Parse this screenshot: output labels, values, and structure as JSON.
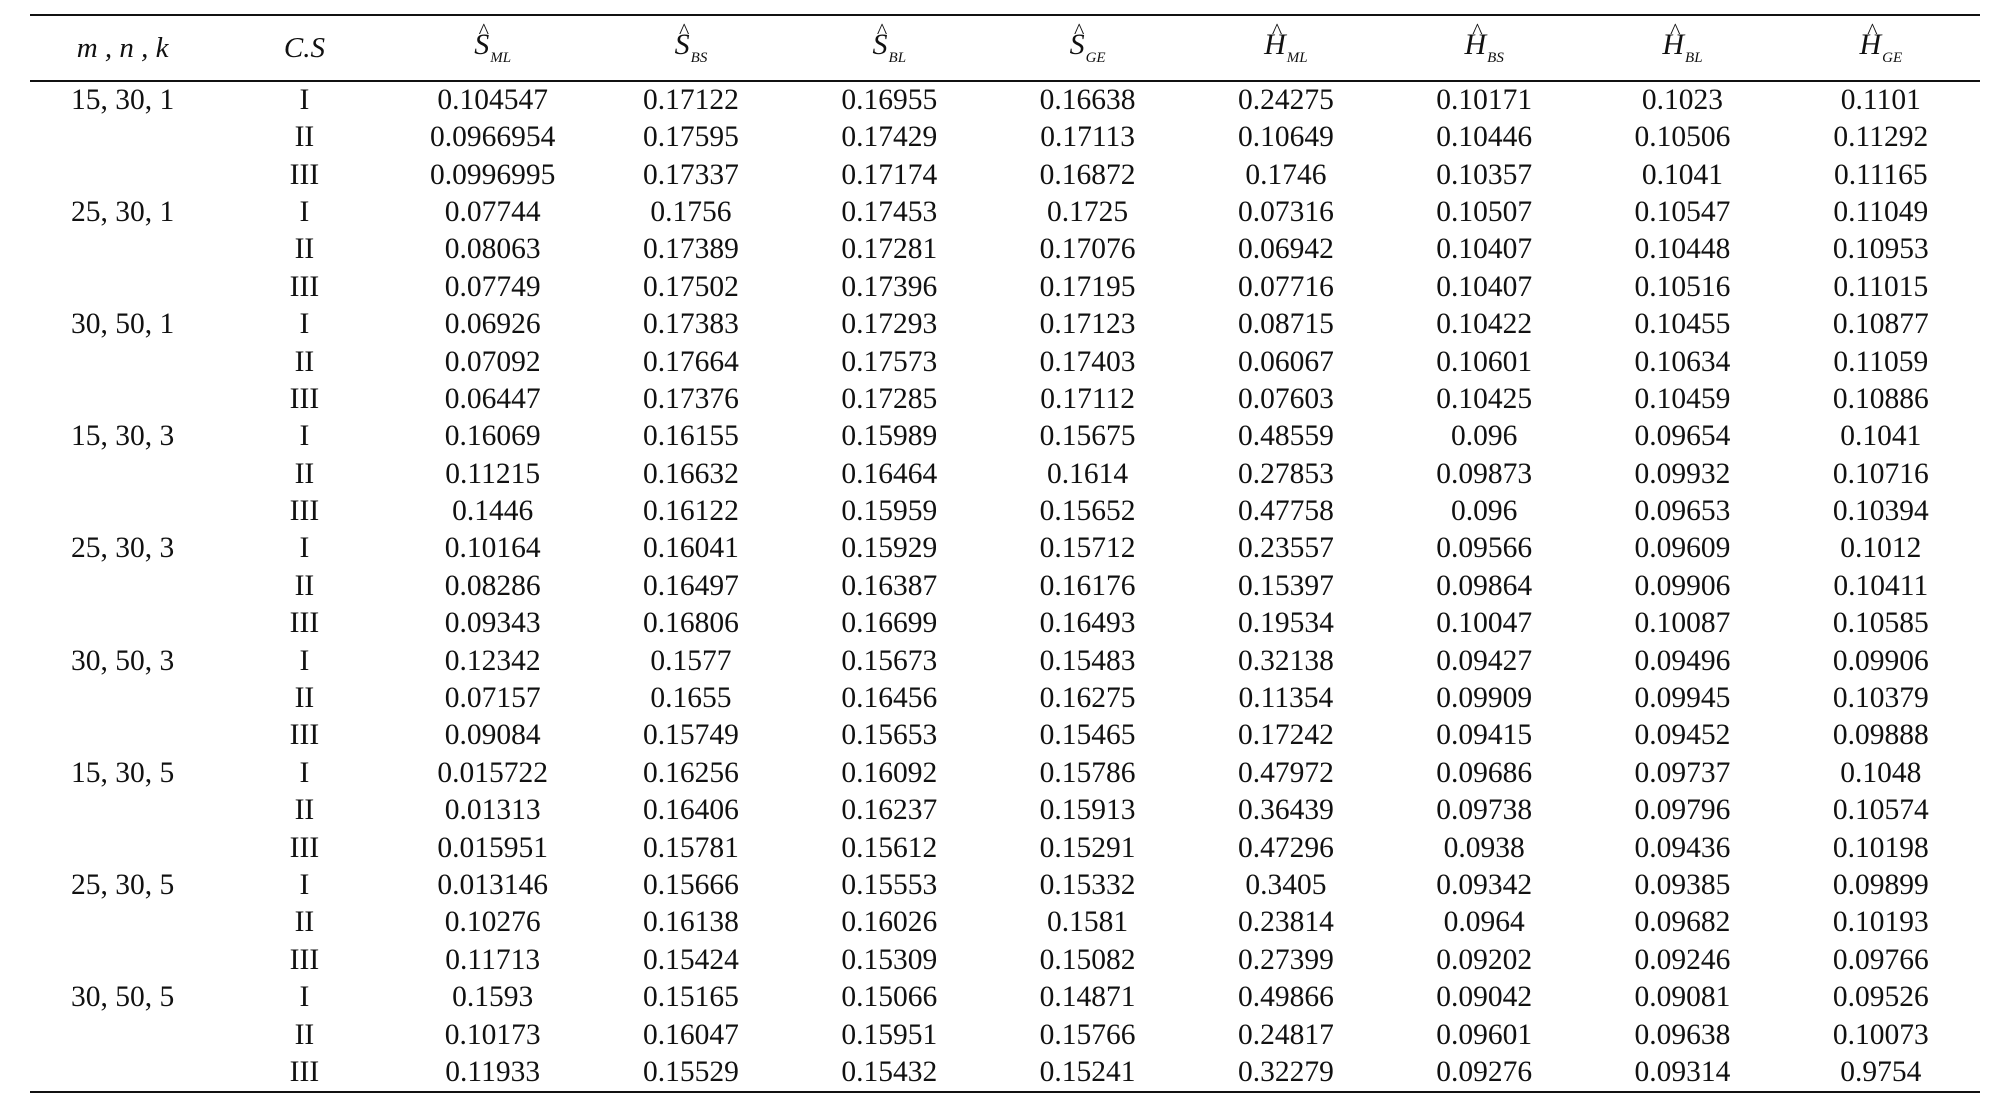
{
  "header": {
    "col_group": "m ,  n ,  k",
    "col_cs": "C.S",
    "estimators": [
      {
        "symbol": "S",
        "sub": "ML"
      },
      {
        "symbol": "S",
        "sub": "BS"
      },
      {
        "symbol": "S",
        "sub": "BL"
      },
      {
        "symbol": "S",
        "sub": "GE"
      },
      {
        "symbol": "H",
        "sub": "ML"
      },
      {
        "symbol": "H",
        "sub": "BS"
      },
      {
        "symbol": "H",
        "sub": "BL"
      },
      {
        "symbol": "H",
        "sub": "GE"
      }
    ]
  },
  "rows": [
    {
      "group": "15, 30, 1",
      "cs": "I",
      "values": [
        "0.104547",
        "0.17122",
        "0.16955",
        "0.16638",
        "0.24275",
        "0.10171",
        "0.1023",
        "0.1101"
      ]
    },
    {
      "group": "",
      "cs": "II",
      "values": [
        "0.0966954",
        "0.17595",
        "0.17429",
        "0.17113",
        "0.10649",
        "0.10446",
        "0.10506",
        "0.11292"
      ]
    },
    {
      "group": "",
      "cs": "III",
      "values": [
        "0.0996995",
        "0.17337",
        "0.17174",
        "0.16872",
        "0.1746",
        "0.10357",
        "0.1041",
        "0.11165"
      ]
    },
    {
      "group": "25, 30, 1",
      "cs": "I",
      "values": [
        "0.07744",
        "0.1756",
        "0.17453",
        "0.1725",
        "0.07316",
        "0.10507",
        "0.10547",
        "0.11049"
      ]
    },
    {
      "group": "",
      "cs": "II",
      "values": [
        "0.08063",
        "0.17389",
        "0.17281",
        "0.17076",
        "0.06942",
        "0.10407",
        "0.10448",
        "0.10953"
      ]
    },
    {
      "group": "",
      "cs": "III",
      "values": [
        "0.07749",
        "0.17502",
        "0.17396",
        "0.17195",
        "0.07716",
        "0.10407",
        "0.10516",
        "0.11015"
      ]
    },
    {
      "group": "30, 50, 1",
      "cs": "I",
      "values": [
        "0.06926",
        "0.17383",
        "0.17293",
        "0.17123",
        "0.08715",
        "0.10422",
        "0.10455",
        "0.10877"
      ]
    },
    {
      "group": "",
      "cs": "II",
      "values": [
        "0.07092",
        "0.17664",
        "0.17573",
        "0.17403",
        "0.06067",
        "0.10601",
        "0.10634",
        "0.11059"
      ]
    },
    {
      "group": "",
      "cs": "III",
      "values": [
        "0.06447",
        "0.17376",
        "0.17285",
        "0.17112",
        "0.07603",
        "0.10425",
        "0.10459",
        "0.10886"
      ]
    },
    {
      "group": "15, 30, 3",
      "cs": "I",
      "values": [
        "0.16069",
        "0.16155",
        "0.15989",
        "0.15675",
        "0.48559",
        "0.096",
        "0.09654",
        "0.1041"
      ]
    },
    {
      "group": "",
      "cs": "II",
      "values": [
        "0.11215",
        "0.16632",
        "0.16464",
        "0.1614",
        "0.27853",
        "0.09873",
        "0.09932",
        "0.10716"
      ]
    },
    {
      "group": "",
      "cs": "III",
      "values": [
        "0.1446",
        "0.16122",
        "0.15959",
        "0.15652",
        "0.47758",
        "0.096",
        "0.09653",
        "0.10394"
      ]
    },
    {
      "group": "25, 30, 3",
      "cs": "I",
      "values": [
        "0.10164",
        "0.16041",
        "0.15929",
        "0.15712",
        "0.23557",
        "0.09566",
        "0.09609",
        "0.1012"
      ]
    },
    {
      "group": "",
      "cs": "II",
      "values": [
        "0.08286",
        "0.16497",
        "0.16387",
        "0.16176",
        "0.15397",
        "0.09864",
        "0.09906",
        "0.10411"
      ]
    },
    {
      "group": "",
      "cs": "III",
      "values": [
        "0.09343",
        "0.16806",
        "0.16699",
        "0.16493",
        "0.19534",
        "0.10047",
        "0.10087",
        "0.10585"
      ]
    },
    {
      "group": "30, 50, 3",
      "cs": "I",
      "values": [
        "0.12342",
        "0.1577",
        "0.15673",
        "0.15483",
        "0.32138",
        "0.09427",
        "0.09496",
        "0.09906"
      ]
    },
    {
      "group": "",
      "cs": "II",
      "values": [
        "0.07157",
        "0.1655",
        "0.16456",
        "0.16275",
        "0.11354",
        "0.09909",
        "0.09945",
        "0.10379"
      ]
    },
    {
      "group": "",
      "cs": "III",
      "values": [
        "0.09084",
        "0.15749",
        "0.15653",
        "0.15465",
        "0.17242",
        "0.09415",
        "0.09452",
        "0.09888"
      ]
    },
    {
      "group": "15, 30, 5",
      "cs": "I",
      "values": [
        "0.015722",
        "0.16256",
        "0.16092",
        "0.15786",
        "0.47972",
        "0.09686",
        "0.09737",
        "0.1048"
      ]
    },
    {
      "group": "",
      "cs": "II",
      "values": [
        "0.01313",
        "0.16406",
        "0.16237",
        "0.15913",
        "0.36439",
        "0.09738",
        "0.09796",
        "0.10574"
      ]
    },
    {
      "group": "",
      "cs": "III",
      "values": [
        "0.015951",
        "0.15781",
        "0.15612",
        "0.15291",
        "0.47296",
        "0.0938",
        "0.09436",
        "0.10198"
      ]
    },
    {
      "group": "25, 30, 5",
      "cs": "I",
      "values": [
        "0.013146",
        "0.15666",
        "0.15553",
        "0.15332",
        "0.3405",
        "0.09342",
        "0.09385",
        "0.09899"
      ]
    },
    {
      "group": "",
      "cs": "II",
      "values": [
        "0.10276",
        "0.16138",
        "0.16026",
        "0.1581",
        "0.23814",
        "0.0964",
        "0.09682",
        "0.10193"
      ]
    },
    {
      "group": "",
      "cs": "III",
      "values": [
        "0.11713",
        "0.15424",
        "0.15309",
        "0.15082",
        "0.27399",
        "0.09202",
        "0.09246",
        "0.09766"
      ]
    },
    {
      "group": "30, 50, 5",
      "cs": "I",
      "values": [
        "0.1593",
        "0.15165",
        "0.15066",
        "0.14871",
        "0.49866",
        "0.09042",
        "0.09081",
        "0.09526"
      ]
    },
    {
      "group": "",
      "cs": "II",
      "values": [
        "0.10173",
        "0.16047",
        "0.15951",
        "0.15766",
        "0.24817",
        "0.09601",
        "0.09638",
        "0.10073"
      ]
    },
    {
      "group": "",
      "cs": "III",
      "values": [
        "0.11933",
        "0.15529",
        "0.15432",
        "0.15241",
        "0.32279",
        "0.09276",
        "0.09314",
        "0.9754"
      ]
    }
  ]
}
